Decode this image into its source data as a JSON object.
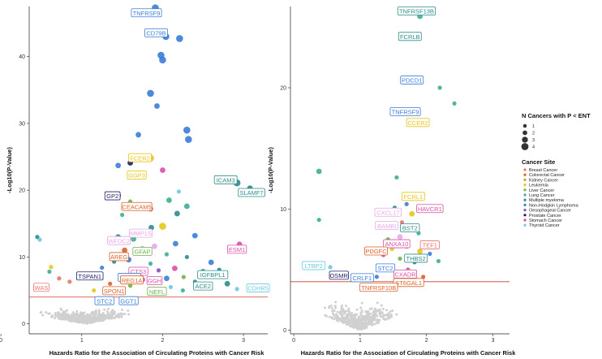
{
  "legend": {
    "size_title": "N Cancers with P < ENT",
    "size_levels": [
      "1",
      "2",
      "3",
      "4"
    ],
    "site_title": "Cancer Site",
    "sites": [
      {
        "name": "Breast Cancer",
        "color": "#E8736C"
      },
      {
        "name": "Colorectal Cancer",
        "color": "#D9622B"
      },
      {
        "name": "Kidney Cancer",
        "color": "#C9A227"
      },
      {
        "name": "Leukemia",
        "color": "#E6C619"
      },
      {
        "name": "Liver Cancer",
        "color": "#6FB24A"
      },
      {
        "name": "Lung Cancer",
        "color": "#3DAF8F"
      },
      {
        "name": "Multiple myeloma",
        "color": "#2E8B8B"
      },
      {
        "name": "Non-Hodgkin Lymphoma",
        "color": "#3B7DD8"
      },
      {
        "name": "Oesophageal Cancer",
        "color": "#8A4FB8"
      },
      {
        "name": "Prostate Cancer",
        "color": "#1C1C6B"
      },
      {
        "name": "Stomach Cancer",
        "color": "#D94FA8"
      },
      {
        "name": "Thyroid Cancer",
        "color": "#6EC8E0"
      }
    ]
  },
  "chart_data": [
    {
      "type": "scatter",
      "panel": "left",
      "xlabel": "Hazards Ratio for the Association of Circulating Proteins with Cancer Risk",
      "ylabel": "-Log10(P-Value)",
      "xlim": [
        0.35,
        3.3
      ],
      "ylim": [
        -1.5,
        47.5
      ],
      "xticks": [
        "0",
        "1",
        "2",
        "3"
      ],
      "xtick_values": [
        0,
        1,
        2,
        3
      ],
      "yticks": [
        "0",
        "10",
        "20",
        "30",
        "40"
      ],
      "ytick_values": [
        0,
        10,
        20,
        30,
        40
      ],
      "threshold": 4.0,
      "labels": [
        {
          "text": "TNFRSF9",
          "x": 1.8,
          "y": 46.5,
          "color": "#3B7DD8"
        },
        {
          "text": "CD79B",
          "x": 1.92,
          "y": 43.5,
          "color": "#3B7DD8"
        },
        {
          "text": "ICAM3",
          "x": 2.78,
          "y": 21.5,
          "color": "#2E8B8B"
        },
        {
          "text": "SLAMF7",
          "x": 3.1,
          "y": 19.6,
          "color": "#2E8B8B"
        },
        {
          "text": "FCER2",
          "x": 1.72,
          "y": 24.8,
          "color": "#E6C619"
        },
        {
          "text": "GGP3",
          "x": 1.68,
          "y": 22.2,
          "color": "#E6C619"
        },
        {
          "text": "GP2",
          "x": 1.38,
          "y": 19.1,
          "color": "#1C1C6B"
        },
        {
          "text": "CEACAM5",
          "x": 1.68,
          "y": 17.5,
          "color": "#D9622B"
        },
        {
          "text": "MMP1S",
          "x": 1.73,
          "y": 13.5,
          "color": "#E8A9E8"
        },
        {
          "text": "WFDC2",
          "x": 1.46,
          "y": 12.4,
          "color": "#E8A9E8"
        },
        {
          "text": "GFAP",
          "x": 1.75,
          "y": 10.8,
          "color": "#6FB24A"
        },
        {
          "text": "AREG",
          "x": 1.46,
          "y": 10.0,
          "color": "#D9622B"
        },
        {
          "text": "ESM1",
          "x": 2.92,
          "y": 11.1,
          "color": "#D94FA8"
        },
        {
          "text": "CTS3",
          "x": 1.7,
          "y": 7.8,
          "color": "#D94FA8"
        },
        {
          "text": "TSPAN1",
          "x": 1.1,
          "y": 7.1,
          "color": "#1C1C6B"
        },
        {
          "text": "FCRL1",
          "x": 1.59,
          "y": 6.9,
          "color": "#3B7DD8"
        },
        {
          "text": "REG1A",
          "x": 1.62,
          "y": 6.5,
          "color": "#D9622B"
        },
        {
          "text": "GGH",
          "x": 1.9,
          "y": 6.4,
          "color": "#D94FA8"
        },
        {
          "text": "IGFBPL1",
          "x": 2.62,
          "y": 7.3,
          "color": "#2E8B8B"
        },
        {
          "text": "WAS",
          "x": 0.5,
          "y": 5.4,
          "color": "#E8736C"
        },
        {
          "text": "ACE2",
          "x": 2.5,
          "y": 5.6,
          "color": "#2E8B8B"
        },
        {
          "text": "CDHR5",
          "x": 3.18,
          "y": 5.3,
          "color": "#6EC8E0"
        },
        {
          "text": "SPON1",
          "x": 1.4,
          "y": 4.9,
          "color": "#D9622B"
        },
        {
          "text": "NEFL",
          "x": 1.93,
          "y": 4.8,
          "color": "#6FB24A"
        },
        {
          "text": "STC2",
          "x": 1.28,
          "y": 3.4,
          "color": "#3B7DD8"
        },
        {
          "text": "GGT1",
          "x": 1.58,
          "y": 3.4,
          "color": "#3B7DD8"
        }
      ],
      "points": [
        {
          "x": 1.91,
          "y": 47.3,
          "color": "#3B7DD8",
          "n": 3
        },
        {
          "x": 2.04,
          "y": 43.0,
          "color": "#3B7DD8",
          "n": 3
        },
        {
          "x": 2.21,
          "y": 42.7,
          "color": "#3B7DD8",
          "n": 3
        },
        {
          "x": 1.98,
          "y": 40.2,
          "color": "#3B7DD8",
          "n": 3
        },
        {
          "x": 2.0,
          "y": 39.5,
          "color": "#3B7DD8",
          "n": 3
        },
        {
          "x": 1.85,
          "y": 34.5,
          "color": "#3B7DD8",
          "n": 3
        },
        {
          "x": 1.93,
          "y": 32.6,
          "color": "#3B7DD8",
          "n": 2
        },
        {
          "x": 2.3,
          "y": 29.0,
          "color": "#3B7DD8",
          "n": 3
        },
        {
          "x": 2.32,
          "y": 27.6,
          "color": "#3B7DD8",
          "n": 3
        },
        {
          "x": 1.7,
          "y": 28.3,
          "color": "#3B7DD8",
          "n": 2
        },
        {
          "x": 1.85,
          "y": 24.8,
          "color": "#E6C619",
          "n": 3
        },
        {
          "x": 1.6,
          "y": 24.1,
          "color": "#1C1C6B",
          "n": 2
        },
        {
          "x": 1.45,
          "y": 23.7,
          "color": "#3B7DD8",
          "n": 2
        },
        {
          "x": 1.74,
          "y": 22.5,
          "color": "#E6C619",
          "n": 2
        },
        {
          "x": 2.0,
          "y": 23.0,
          "color": "#D94FA8",
          "n": 2
        },
        {
          "x": 2.92,
          "y": 21.1,
          "color": "#2E8B8B",
          "n": 3
        },
        {
          "x": 3.08,
          "y": 20.3,
          "color": "#2E8B8B",
          "n": 2
        },
        {
          "x": 2.2,
          "y": 19.8,
          "color": "#6EC8E0",
          "n": 1
        },
        {
          "x": 1.45,
          "y": 19.2,
          "color": "#1C1C6B",
          "n": 2
        },
        {
          "x": 1.6,
          "y": 18.3,
          "color": "#6FB24A",
          "n": 1
        },
        {
          "x": 1.72,
          "y": 17.8,
          "color": "#D9622B",
          "n": 2
        },
        {
          "x": 1.85,
          "y": 17.2,
          "color": "#E8736C",
          "n": 2
        },
        {
          "x": 2.08,
          "y": 18.5,
          "color": "#3DAF8F",
          "n": 2
        },
        {
          "x": 2.3,
          "y": 17.6,
          "color": "#3DAF8F",
          "n": 2
        },
        {
          "x": 2.18,
          "y": 16.5,
          "color": "#2E8B8B",
          "n": 2
        },
        {
          "x": 1.5,
          "y": 16.3,
          "color": "#3DAF8F",
          "n": 1
        },
        {
          "x": 2.0,
          "y": 14.6,
          "color": "#E6C619",
          "n": 3
        },
        {
          "x": 1.86,
          "y": 14.4,
          "color": "#2E8B8B",
          "n": 2
        },
        {
          "x": 1.7,
          "y": 13.8,
          "color": "#3DAF8F",
          "n": 2
        },
        {
          "x": 2.4,
          "y": 13.2,
          "color": "#3B7DD8",
          "n": 2
        },
        {
          "x": 1.45,
          "y": 13.0,
          "color": "#2E8B8B",
          "n": 2
        },
        {
          "x": 1.64,
          "y": 12.7,
          "color": "#3DAF8F",
          "n": 2
        },
        {
          "x": 2.16,
          "y": 12.0,
          "color": "#3B7DD8",
          "n": 2
        },
        {
          "x": 1.9,
          "y": 11.6,
          "color": "#E8A9E8",
          "n": 2
        },
        {
          "x": 1.75,
          "y": 11.2,
          "color": "#6FB24A",
          "n": 2
        },
        {
          "x": 1.53,
          "y": 11.0,
          "color": "#D9622B",
          "n": 2
        },
        {
          "x": 2.95,
          "y": 11.9,
          "color": "#D94FA8",
          "n": 2
        },
        {
          "x": 2.05,
          "y": 10.4,
          "color": "#3DAF8F",
          "n": 1
        },
        {
          "x": 2.3,
          "y": 10.0,
          "color": "#2E8B8B",
          "n": 1
        },
        {
          "x": 1.58,
          "y": 9.6,
          "color": "#3B7DD8",
          "n": 2
        },
        {
          "x": 1.4,
          "y": 9.3,
          "color": "#2E8B8B",
          "n": 1
        },
        {
          "x": 1.85,
          "y": 9.0,
          "color": "#3DAF8F",
          "n": 1
        },
        {
          "x": 2.6,
          "y": 9.2,
          "color": "#3B7DD8",
          "n": 2
        },
        {
          "x": 1.25,
          "y": 8.4,
          "color": "#3B7DD8",
          "n": 1
        },
        {
          "x": 1.72,
          "y": 8.1,
          "color": "#E6C619",
          "n": 2
        },
        {
          "x": 2.15,
          "y": 8.3,
          "color": "#D94FA8",
          "n": 2
        },
        {
          "x": 1.95,
          "y": 8.0,
          "color": "#8A4FB8",
          "n": 1
        },
        {
          "x": 2.5,
          "y": 7.8,
          "color": "#2E8B8B",
          "n": 2
        },
        {
          "x": 2.7,
          "y": 8.1,
          "color": "#2E8B8B",
          "n": 1
        },
        {
          "x": 0.62,
          "y": 8.5,
          "color": "#E6C619",
          "n": 1
        },
        {
          "x": 0.6,
          "y": 7.8,
          "color": "#3DAF8F",
          "n": 1
        },
        {
          "x": 0.72,
          "y": 6.8,
          "color": "#E8736C",
          "n": 1
        },
        {
          "x": 0.85,
          "y": 6.3,
          "color": "#E8736C",
          "n": 1
        },
        {
          "x": 1.48,
          "y": 6.8,
          "color": "#1C1C6B",
          "n": 1
        },
        {
          "x": 1.75,
          "y": 6.6,
          "color": "#D94FA8",
          "n": 2
        },
        {
          "x": 2.05,
          "y": 6.8,
          "color": "#3B7DD8",
          "n": 2
        },
        {
          "x": 2.26,
          "y": 7.0,
          "color": "#6FB24A",
          "n": 1
        },
        {
          "x": 2.4,
          "y": 6.3,
          "color": "#2E8B8B",
          "n": 1
        },
        {
          "x": 2.8,
          "y": 6.0,
          "color": "#2E8B8B",
          "n": 2
        },
        {
          "x": 1.35,
          "y": 6.0,
          "color": "#D9622B",
          "n": 1
        },
        {
          "x": 1.6,
          "y": 5.7,
          "color": "#6FB24A",
          "n": 1
        },
        {
          "x": 2.1,
          "y": 5.5,
          "color": "#6EC8E0",
          "n": 1
        },
        {
          "x": 2.92,
          "y": 5.2,
          "color": "#6EC8E0",
          "n": 1
        },
        {
          "x": 0.45,
          "y": 13.0,
          "color": "#2E8B8B",
          "n": 1
        },
        {
          "x": 0.48,
          "y": 12.6,
          "color": "#6EC8E0",
          "n": 1
        },
        {
          "x": 2.25,
          "y": 5.0,
          "color": "#3DAF8F",
          "n": 1
        },
        {
          "x": 1.15,
          "y": 5.0,
          "color": "#E6C619",
          "n": 1
        },
        {
          "x": 1.9,
          "y": 4.6,
          "color": "#3DAF8F",
          "n": 1
        }
      ]
    },
    {
      "type": "scatter",
      "panel": "right",
      "xlabel": "Hazards Ratio for the Association of Circulating Proteins with Cancer Risk",
      "ylabel": "-Log10(P-Value)",
      "xlim": [
        -0.05,
        3.25
      ],
      "ylim": [
        -0.3,
        26.7
      ],
      "xticks": [
        "0",
        "1",
        "2",
        "3"
      ],
      "xtick_values": [
        0,
        1,
        2,
        3
      ],
      "yticks": [
        "0",
        "10",
        "20"
      ],
      "ytick_values": [
        0,
        10,
        20
      ],
      "threshold": 4.0,
      "labels": [
        {
          "text": "TNFRSF13B",
          "x": 1.85,
          "y": 26.3,
          "color": "#2E8B8B"
        },
        {
          "text": "FCRLB",
          "x": 1.75,
          "y": 24.2,
          "color": "#2E8B8B"
        },
        {
          "text": "PDCD1",
          "x": 1.78,
          "y": 20.6,
          "color": "#3B7DD8"
        },
        {
          "text": "TNFRSF9",
          "x": 1.68,
          "y": 18.0,
          "color": "#3B7DD8"
        },
        {
          "text": "CCER2",
          "x": 1.87,
          "y": 17.1,
          "color": "#E6C619"
        },
        {
          "text": "FCRL1",
          "x": 1.8,
          "y": 11.0,
          "color": "#E6C619"
        },
        {
          "text": "CXCL17",
          "x": 1.42,
          "y": 9.7,
          "color": "#E8A9E8"
        },
        {
          "text": "HAVCR1",
          "x": 2.05,
          "y": 10.0,
          "color": "#D94FA8"
        },
        {
          "text": "BAMBI",
          "x": 1.4,
          "y": 8.6,
          "color": "#E8A9E8"
        },
        {
          "text": "BST2",
          "x": 1.75,
          "y": 8.4,
          "color": "#2E8B8B"
        },
        {
          "text": "ANXA10",
          "x": 1.55,
          "y": 7.1,
          "color": "#D94FA8"
        },
        {
          "text": "TEF1",
          "x": 2.05,
          "y": 7.0,
          "color": "#E8736C"
        },
        {
          "text": "PDGFC",
          "x": 1.24,
          "y": 6.5,
          "color": "#D9622B"
        },
        {
          "text": "THBS2",
          "x": 1.84,
          "y": 5.9,
          "color": "#2E8B8B"
        },
        {
          "text": "LTBP2",
          "x": 0.3,
          "y": 5.3,
          "color": "#6EC8E0"
        },
        {
          "text": "STC2",
          "x": 1.38,
          "y": 5.1,
          "color": "#3B7DD8"
        },
        {
          "text": "CXADR",
          "x": 1.68,
          "y": 4.6,
          "color": "#D94FA8"
        },
        {
          "text": "OSMR",
          "x": 0.68,
          "y": 4.5,
          "color": "#1C1C6B"
        },
        {
          "text": "CRLF1",
          "x": 1.03,
          "y": 4.3,
          "color": "#3B7DD8"
        },
        {
          "text": "ST6GAL1",
          "x": 1.73,
          "y": 3.9,
          "color": "#D9622B"
        },
        {
          "text": "TNFRSF10B",
          "x": 1.28,
          "y": 3.5,
          "color": "#D9622B"
        }
      ],
      "points": [
        {
          "x": 1.9,
          "y": 25.9,
          "color": "#3DAF8F",
          "n": 2
        },
        {
          "x": 2.2,
          "y": 20.0,
          "color": "#3DAF8F",
          "n": 1
        },
        {
          "x": 2.42,
          "y": 18.7,
          "color": "#3DAF8F",
          "n": 1
        },
        {
          "x": 1.8,
          "y": 17.1,
          "color": "#3B7DD8",
          "n": 3
        },
        {
          "x": 0.38,
          "y": 13.1,
          "color": "#3DAF8F",
          "n": 2
        },
        {
          "x": 1.55,
          "y": 12.6,
          "color": "#3DAF8F",
          "n": 1
        },
        {
          "x": 1.7,
          "y": 10.4,
          "color": "#3B7DD8",
          "n": 1
        },
        {
          "x": 1.52,
          "y": 10.1,
          "color": "#2E8B8B",
          "n": 1
        },
        {
          "x": 1.78,
          "y": 9.6,
          "color": "#E6C619",
          "n": 2
        },
        {
          "x": 1.95,
          "y": 9.9,
          "color": "#8A4FB8",
          "n": 1
        },
        {
          "x": 0.38,
          "y": 9.1,
          "color": "#3DAF8F",
          "n": 1
        },
        {
          "x": 1.63,
          "y": 8.9,
          "color": "#E8736C",
          "n": 1
        },
        {
          "x": 1.6,
          "y": 7.7,
          "color": "#E8A9E8",
          "n": 2
        },
        {
          "x": 1.88,
          "y": 8.0,
          "color": "#3DAF8F",
          "n": 1
        },
        {
          "x": 1.42,
          "y": 7.5,
          "color": "#6FB24A",
          "n": 1
        },
        {
          "x": 1.7,
          "y": 6.9,
          "color": "#D9622B",
          "n": 1
        },
        {
          "x": 1.48,
          "y": 6.7,
          "color": "#E6C619",
          "n": 1
        },
        {
          "x": 1.9,
          "y": 6.5,
          "color": "#E6C619",
          "n": 2
        },
        {
          "x": 2.05,
          "y": 6.3,
          "color": "#3B7DD8",
          "n": 1
        },
        {
          "x": 1.35,
          "y": 6.2,
          "color": "#D94FA8",
          "n": 1
        },
        {
          "x": 1.6,
          "y": 5.9,
          "color": "#6FB24A",
          "n": 1
        },
        {
          "x": 1.82,
          "y": 5.6,
          "color": "#2E8B8B",
          "n": 1
        },
        {
          "x": 2.18,
          "y": 5.7,
          "color": "#3DAF8F",
          "n": 1
        },
        {
          "x": 0.55,
          "y": 5.2,
          "color": "#6EC8E0",
          "n": 1
        },
        {
          "x": 1.45,
          "y": 5.3,
          "color": "#3B7DD8",
          "n": 1
        },
        {
          "x": 1.72,
          "y": 5.0,
          "color": "#D94FA8",
          "n": 1
        },
        {
          "x": 1.55,
          "y": 4.8,
          "color": "#3DAF8F",
          "n": 1
        },
        {
          "x": 0.95,
          "y": 4.5,
          "color": "#1C1C6B",
          "n": 1
        },
        {
          "x": 1.25,
          "y": 4.4,
          "color": "#3B7DD8",
          "n": 1
        },
        {
          "x": 1.95,
          "y": 4.4,
          "color": "#D9622B",
          "n": 1
        },
        {
          "x": 1.65,
          "y": 4.2,
          "color": "#8A4FB8",
          "n": 1
        }
      ]
    }
  ]
}
